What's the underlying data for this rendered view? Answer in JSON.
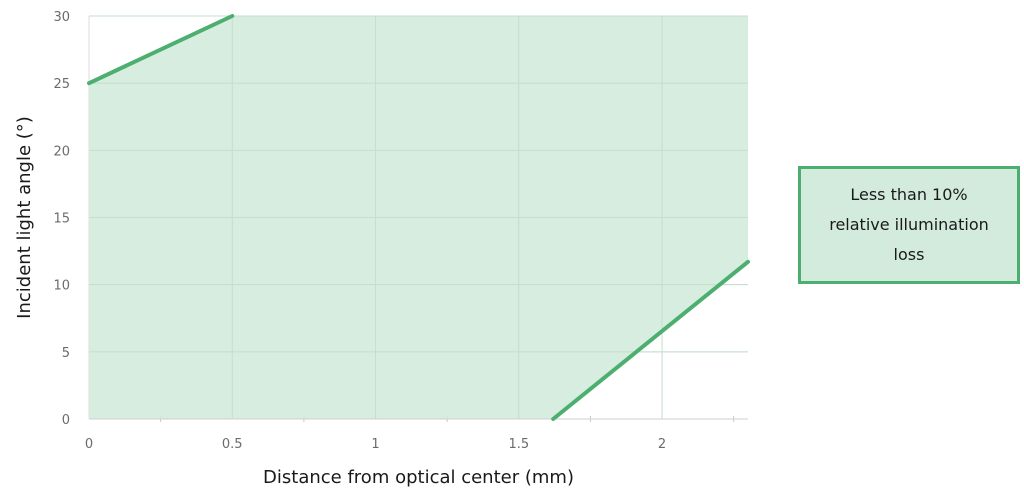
{
  "chart_data": {
    "type": "area",
    "xlabel": "Distance from optical center (mm)",
    "ylabel": "Incident light angle (°)",
    "xlim": [
      0,
      2.3
    ],
    "ylim": [
      0,
      30
    ],
    "x_ticks": [
      "0",
      "0.5",
      "1",
      "1.5",
      "2"
    ],
    "x_tick_values": [
      0,
      0.5,
      1,
      1.5,
      2
    ],
    "y_ticks": [
      "0",
      "5",
      "10",
      "15",
      "20",
      "25",
      "30"
    ],
    "y_tick_values": [
      0,
      5,
      10,
      15,
      20,
      25,
      30
    ],
    "grid": true,
    "region": {
      "label": "Less than 10%\nrelative illumination\nloss",
      "fill_color": "#d2ebdc",
      "polygon": [
        [
          0,
          0
        ],
        [
          0,
          25
        ],
        [
          0.5,
          30
        ],
        [
          2.3,
          30
        ],
        [
          2.3,
          11.7
        ],
        [
          1.62,
          0
        ]
      ]
    },
    "series": [
      {
        "x": [
          0,
          0.5
        ],
        "y": [
          25,
          30
        ]
      },
      {
        "x": [
          1.62,
          2.3
        ],
        "y": [
          0,
          11.7
        ]
      }
    ],
    "line_color": "#4daf6f",
    "legend_placement": "right"
  }
}
